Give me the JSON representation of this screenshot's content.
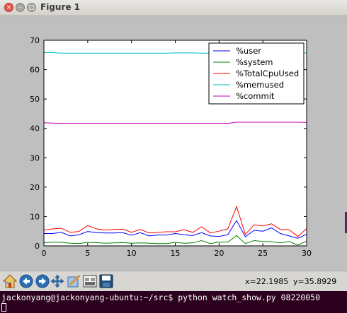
{
  "window": {
    "title": "Figure 1"
  },
  "window_buttons": {
    "close": "×",
    "minimize": "–",
    "maximize": "□"
  },
  "toolbar": {
    "tools": [
      "home-icon",
      "back-icon",
      "forward-icon",
      "pan-icon",
      "zoom-icon",
      "subplots-icon",
      "save-icon"
    ],
    "coord_x": "x=22.1985",
    "coord_y": "y=35.8929"
  },
  "terminal": {
    "prompt_line": "jackonyang@jackonyang-ubuntu:~/src$ python watch_show.py 08220050"
  },
  "colors": {
    "user": "#0000ff",
    "system": "#008000",
    "total": "#ff0000",
    "memused": "#00bfbf",
    "commit": "#bf00bf"
  },
  "chart_data": {
    "type": "line",
    "xlim": [
      0,
      30
    ],
    "ylim": [
      0,
      70
    ],
    "x_ticks": [
      "0",
      "5",
      "10",
      "15",
      "20",
      "25",
      "30"
    ],
    "y_ticks": [
      "0",
      "10",
      "20",
      "30",
      "40",
      "50",
      "60",
      "70"
    ],
    "legend_position": "top-right",
    "grid": false,
    "x": [
      0,
      1,
      2,
      3,
      4,
      5,
      6,
      7,
      8,
      9,
      10,
      11,
      12,
      13,
      14,
      15,
      16,
      17,
      18,
      19,
      20,
      21,
      22,
      23,
      24,
      25,
      26,
      27,
      28,
      29,
      30
    ],
    "series": [
      {
        "name": "%user",
        "color": "#0000ff",
        "values": [
          4.2,
          4.2,
          4.6,
          3.4,
          3.8,
          4.9,
          4.5,
          4.4,
          4.4,
          4.5,
          3.6,
          4.5,
          3.4,
          3.7,
          3.7,
          4.2,
          3.8,
          3.5,
          4.5,
          3.4,
          3.2,
          3.8,
          8.6,
          3.1,
          5.3,
          5.0,
          6.1,
          4.2,
          3.4,
          2.6,
          4.0
        ]
      },
      {
        "name": "%system",
        "color": "#008000",
        "values": [
          1.0,
          1.3,
          1.2,
          0.9,
          0.8,
          1.2,
          1.1,
          0.9,
          1.0,
          1.1,
          0.9,
          1.0,
          0.9,
          0.8,
          0.8,
          1.2,
          0.9,
          1.0,
          1.8,
          0.8,
          1.3,
          1.3,
          3.5,
          0.8,
          1.8,
          1.5,
          1.4,
          1.0,
          1.5,
          0.3,
          1.6
        ]
      },
      {
        "name": "%TotalCpuUsed",
        "color": "#ff0000",
        "values": [
          5.4,
          5.8,
          6.0,
          4.6,
          4.9,
          6.9,
          5.8,
          5.4,
          5.6,
          5.7,
          4.6,
          5.6,
          4.4,
          4.6,
          4.8,
          4.8,
          5.5,
          4.6,
          6.5,
          4.4,
          5.0,
          5.8,
          13.4,
          3.9,
          7.2,
          6.8,
          7.5,
          5.6,
          5.5,
          3.2,
          5.9
        ]
      },
      {
        "name": "%memused",
        "color": "#00bfbf",
        "values": [
          65.8,
          65.8,
          65.6,
          65.6,
          65.6,
          65.6,
          65.6,
          65.6,
          65.6,
          65.6,
          65.6,
          65.6,
          65.6,
          65.6,
          65.6,
          65.7,
          65.7,
          65.7,
          65.6,
          65.6,
          65.6,
          65.6,
          65.8,
          65.8,
          65.7,
          65.7,
          65.7,
          65.7,
          65.7,
          65.7,
          65.7
        ]
      },
      {
        "name": "%commit",
        "color": "#bf00bf",
        "values": [
          41.9,
          41.8,
          41.7,
          41.7,
          41.7,
          41.7,
          41.7,
          41.7,
          41.7,
          41.7,
          41.7,
          41.7,
          41.7,
          41.7,
          41.7,
          41.7,
          41.7,
          41.7,
          41.7,
          41.7,
          41.7,
          41.7,
          42.1,
          42.1,
          42.1,
          42.1,
          42.1,
          42.1,
          42.1,
          42.1,
          42.0
        ]
      }
    ]
  }
}
